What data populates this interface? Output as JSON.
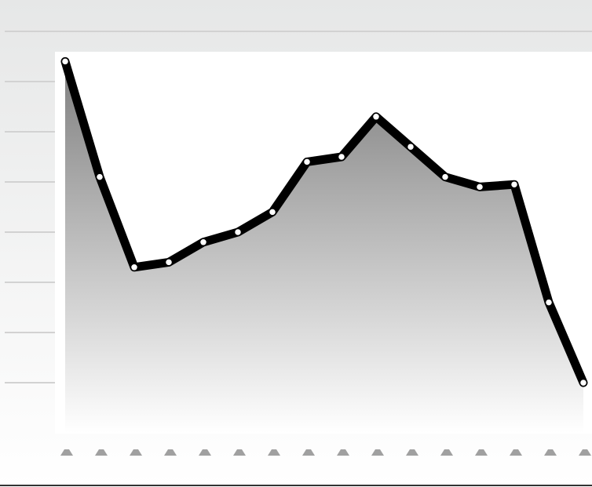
{
  "chart_data": {
    "type": "area",
    "title": "",
    "xlabel": "",
    "ylabel": "",
    "x": [
      1,
      2,
      3,
      4,
      5,
      6,
      7,
      8,
      9,
      10,
      11,
      12,
      13,
      14,
      15,
      16
    ],
    "series": [
      {
        "values": [
          7.4,
          5.1,
          3.3,
          3.4,
          3.8,
          4.0,
          4.4,
          5.4,
          5.5,
          6.3,
          5.7,
          5.1,
          4.9,
          4.95,
          2.6,
          1.0
        ]
      }
    ],
    "ylim": [
      0,
      8
    ],
    "grid": true,
    "legend": "none",
    "tick_labels_visible": false,
    "colors": {
      "line": "#000000",
      "marker_fill": "#ffffff",
      "area_top": "#7f7f7f",
      "area_bottom": "#ffffff",
      "header_band": "#e6e7e7",
      "gridline": "#d2d2d2",
      "tick_marker": "#a0a0a0",
      "axis_line": "#333333"
    }
  }
}
